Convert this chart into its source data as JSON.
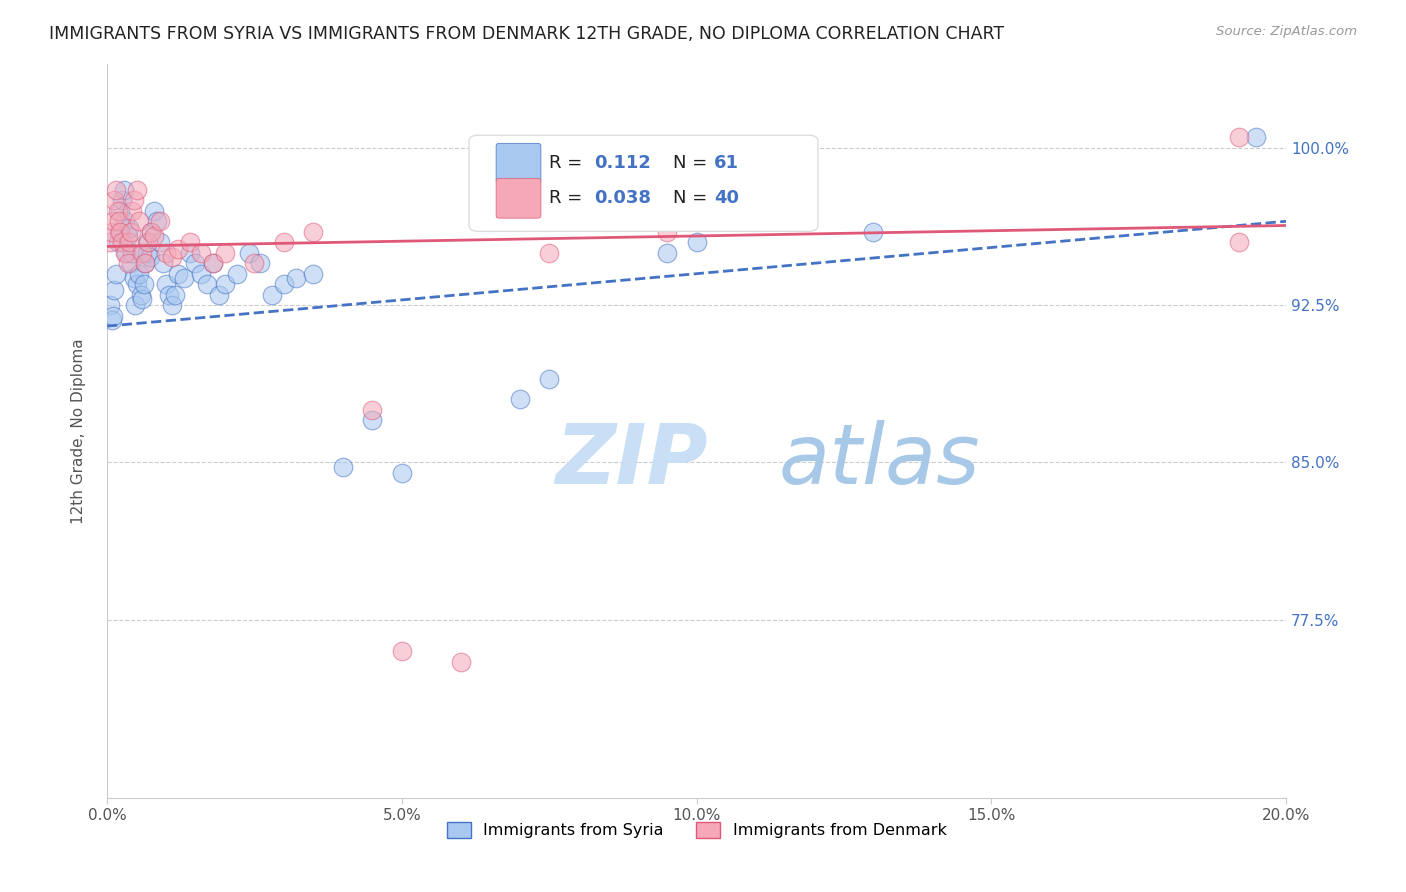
{
  "title": "IMMIGRANTS FROM SYRIA VS IMMIGRANTS FROM DENMARK 12TH GRADE, NO DIPLOMA CORRELATION CHART",
  "source": "Source: ZipAtlas.com",
  "ylabel": "12th Grade, No Diploma",
  "x_tick_labels": [
    "0.0%",
    "5.0%",
    "10.0%",
    "15.0%",
    "20.0%"
  ],
  "x_tick_values": [
    0.0,
    5.0,
    10.0,
    15.0,
    20.0
  ],
  "y_tick_labels": [
    "77.5%",
    "85.0%",
    "92.5%",
    "100.0%"
  ],
  "y_tick_values": [
    77.5,
    85.0,
    92.5,
    100.0
  ],
  "xlim": [
    0.0,
    20.0
  ],
  "ylim": [
    69.0,
    104.0
  ],
  "legend_r_syria": "0.112",
  "legend_n_syria": "61",
  "legend_r_denmark": "0.038",
  "legend_n_denmark": "40",
  "color_syria": "#a8c8f0",
  "color_denmark": "#f4a8b8",
  "color_trend_syria": "#4472c4",
  "color_trend_denmark": "#e05878",
  "watermark_color": "#ddeeff",
  "syria_x": [
    0.05,
    0.08,
    0.1,
    0.12,
    0.15,
    0.18,
    0.2,
    0.22,
    0.25,
    0.28,
    0.3,
    0.32,
    0.35,
    0.38,
    0.4,
    0.42,
    0.45,
    0.48,
    0.5,
    0.55,
    0.58,
    0.6,
    0.62,
    0.65,
    0.68,
    0.7,
    0.72,
    0.75,
    0.8,
    0.85,
    0.9,
    0.95,
    1.0,
    1.05,
    1.1,
    1.15,
    1.2,
    1.3,
    1.4,
    1.5,
    1.6,
    1.7,
    1.8,
    1.9,
    2.0,
    2.2,
    2.4,
    2.6,
    2.8,
    3.0,
    3.2,
    3.5,
    4.0,
    4.5,
    5.0,
    7.0,
    7.5,
    9.5,
    10.0,
    13.0,
    19.5
  ],
  "syria_y": [
    92.5,
    91.8,
    92.0,
    93.2,
    94.0,
    95.5,
    96.0,
    97.0,
    97.5,
    98.0,
    96.5,
    95.0,
    95.8,
    96.2,
    94.5,
    95.0,
    93.8,
    92.5,
    93.5,
    94.0,
    93.0,
    92.8,
    93.5,
    94.5,
    95.0,
    95.5,
    94.8,
    96.0,
    97.0,
    96.5,
    95.5,
    94.5,
    93.5,
    93.0,
    92.5,
    93.0,
    94.0,
    93.8,
    95.0,
    94.5,
    94.0,
    93.5,
    94.5,
    93.0,
    93.5,
    94.0,
    95.0,
    94.5,
    93.0,
    93.5,
    93.8,
    94.0,
    84.8,
    87.0,
    84.5,
    88.0,
    89.0,
    95.0,
    95.5,
    96.0,
    100.5
  ],
  "denmark_x": [
    0.05,
    0.08,
    0.1,
    0.12,
    0.15,
    0.18,
    0.2,
    0.22,
    0.25,
    0.3,
    0.35,
    0.38,
    0.4,
    0.42,
    0.45,
    0.5,
    0.55,
    0.6,
    0.65,
    0.7,
    0.75,
    0.8,
    0.9,
    1.0,
    1.1,
    1.2,
    1.4,
    1.6,
    1.8,
    2.0,
    2.5,
    3.0,
    3.5,
    4.5,
    5.0,
    6.0,
    7.5,
    9.5,
    19.2,
    19.2
  ],
  "denmark_y": [
    95.5,
    96.0,
    96.5,
    97.5,
    98.0,
    97.0,
    96.5,
    96.0,
    95.5,
    95.0,
    94.5,
    95.5,
    96.0,
    97.0,
    97.5,
    98.0,
    96.5,
    95.0,
    94.5,
    95.5,
    96.0,
    95.8,
    96.5,
    95.0,
    94.8,
    95.2,
    95.5,
    95.0,
    94.5,
    95.0,
    94.5,
    95.5,
    96.0,
    87.5,
    76.0,
    75.5,
    95.0,
    96.0,
    95.5,
    100.5
  ]
}
